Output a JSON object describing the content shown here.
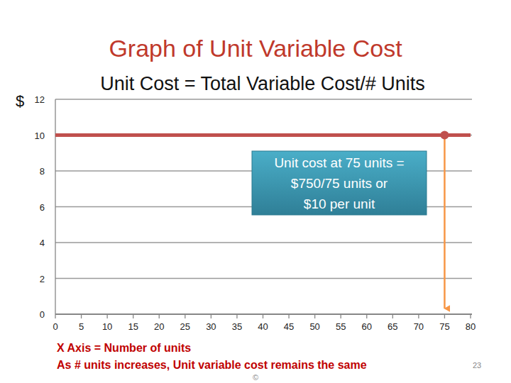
{
  "chart_data": {
    "type": "line",
    "title": "Graph of Unit Variable Cost",
    "subtitle": "Unit Cost = Total Variable Cost/# Units",
    "y_label": "$",
    "x_label": "X Axis = Number of units",
    "note": "As # units increases, Unit variable cost remains the same",
    "x": [
      0,
      80
    ],
    "series": [
      {
        "color": "#c0504d",
        "values": [
          10,
          10
        ]
      }
    ],
    "xlim": [
      0,
      80
    ],
    "xticks": [
      0,
      5,
      10,
      15,
      20,
      25,
      30,
      35,
      40,
      45,
      50,
      55,
      60,
      65,
      70,
      75,
      80
    ],
    "ylim": [
      0,
      12
    ],
    "yticks": [
      0,
      2,
      4,
      6,
      8,
      10,
      12
    ],
    "grid": true,
    "annotation": {
      "x": 75,
      "y": 10,
      "text": [
        "Unit cost at 75 units =",
        "$750/75 units or",
        "$10 per unit"
      ]
    },
    "page_number": "23",
    "footer": "©"
  }
}
